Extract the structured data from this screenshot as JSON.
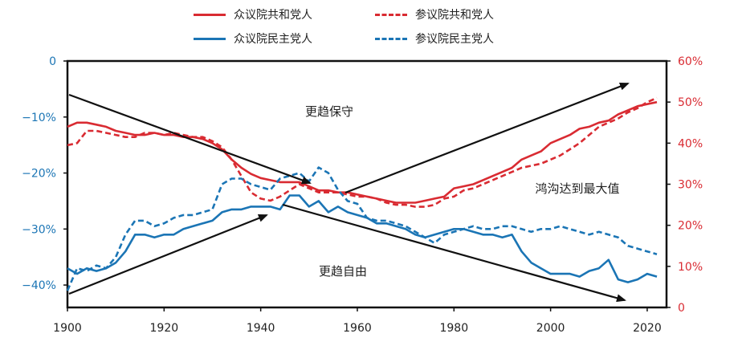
{
  "chart_data": {
    "type": "line",
    "x_ticks": [
      1900,
      1920,
      1940,
      1960,
      1980,
      2000,
      2020
    ],
    "xlim": [
      1900,
      2024
    ],
    "left_axis": {
      "ylim": [
        -44,
        0
      ],
      "ticks": [
        0,
        -10,
        -20,
        -30,
        -40
      ],
      "tick_labels": [
        "0",
        "−10%",
        "−20%",
        "−30%",
        "−40%"
      ],
      "color": "#1b75b5"
    },
    "right_axis": {
      "ylim": [
        0,
        60
      ],
      "ticks": [
        0,
        10,
        20,
        30,
        40,
        50,
        60
      ],
      "tick_labels": [
        "0",
        "10%",
        "20%",
        "30%",
        "40%",
        "50%",
        "60%"
      ],
      "color": "#d92b32"
    },
    "series": [
      {
        "name": "众议院共和党人",
        "axis": "right",
        "color": "#d92b32",
        "dash": "solid",
        "x": [
          1900,
          1902,
          1904,
          1906,
          1908,
          1910,
          1912,
          1914,
          1916,
          1918,
          1920,
          1922,
          1924,
          1926,
          1928,
          1930,
          1932,
          1934,
          1936,
          1938,
          1940,
          1942,
          1944,
          1946,
          1948,
          1950,
          1952,
          1954,
          1956,
          1958,
          1960,
          1962,
          1964,
          1966,
          1968,
          1970,
          1972,
          1974,
          1976,
          1978,
          1980,
          1982,
          1984,
          1986,
          1988,
          1990,
          1992,
          1994,
          1996,
          1998,
          2000,
          2002,
          2004,
          2006,
          2008,
          2010,
          2012,
          2014,
          2016,
          2018,
          2020,
          2022
        ],
        "y": [
          44,
          45,
          45,
          44.5,
          44,
          43,
          42.5,
          42,
          42,
          42.5,
          42,
          42,
          41.5,
          41.5,
          41,
          40,
          38.5,
          36,
          34,
          32.5,
          31.5,
          31,
          30.5,
          30.5,
          30.5,
          29.5,
          28.5,
          28.5,
          28,
          28,
          27.5,
          27,
          26.5,
          26,
          25.5,
          25.5,
          25.5,
          26,
          26.5,
          27,
          29,
          29.5,
          30,
          31,
          32,
          33,
          34,
          36,
          37,
          38,
          40,
          41,
          42,
          43.5,
          44,
          45,
          45.5,
          47,
          48,
          49,
          49.5,
          50
        ]
      },
      {
        "name": "参议院共和党人",
        "axis": "right",
        "color": "#d92b32",
        "dash": "dashed",
        "x": [
          1900,
          1902,
          1904,
          1906,
          1908,
          1910,
          1912,
          1914,
          1916,
          1918,
          1920,
          1922,
          1924,
          1926,
          1928,
          1930,
          1932,
          1934,
          1936,
          1938,
          1940,
          1942,
          1944,
          1946,
          1948,
          1950,
          1952,
          1954,
          1956,
          1958,
          1960,
          1962,
          1964,
          1966,
          1968,
          1970,
          1972,
          1974,
          1976,
          1978,
          1980,
          1982,
          1984,
          1986,
          1988,
          1990,
          1992,
          1994,
          1996,
          1998,
          2000,
          2002,
          2004,
          2006,
          2008,
          2010,
          2012,
          2014,
          2016,
          2018,
          2020,
          2022
        ],
        "y": [
          39.5,
          40,
          43,
          43,
          42.5,
          42,
          41.5,
          41.5,
          42.5,
          42.5,
          42,
          42.5,
          42,
          41.5,
          41.5,
          40.5,
          39,
          36,
          32,
          28,
          26.5,
          26,
          27,
          28.5,
          30,
          29,
          28,
          28,
          28,
          27.5,
          27,
          27,
          26.5,
          25.5,
          25,
          25,
          24.5,
          24.5,
          25,
          26.5,
          27,
          28.5,
          29,
          30,
          31,
          32,
          33,
          34,
          34.5,
          35,
          36,
          37,
          38.5,
          40,
          42,
          44,
          45,
          46,
          47.5,
          48.5,
          50,
          51
        ]
      },
      {
        "name": "众议院民主党人",
        "axis": "left",
        "color": "#1b75b5",
        "dash": "solid",
        "x": [
          1900,
          1902,
          1904,
          1906,
          1908,
          1910,
          1912,
          1914,
          1916,
          1918,
          1920,
          1922,
          1924,
          1926,
          1928,
          1930,
          1932,
          1934,
          1936,
          1938,
          1940,
          1942,
          1944,
          1946,
          1948,
          1950,
          1952,
          1954,
          1956,
          1958,
          1960,
          1962,
          1964,
          1966,
          1968,
          1970,
          1972,
          1974,
          1976,
          1978,
          1980,
          1982,
          1984,
          1986,
          1988,
          1990,
          1992,
          1994,
          1996,
          1998,
          2000,
          2002,
          2004,
          2006,
          2008,
          2010,
          2012,
          2014,
          2016,
          2018,
          2020,
          2022
        ],
        "y": [
          -37,
          -38,
          -37,
          -37.5,
          -37,
          -36,
          -34,
          -31,
          -31,
          -31.5,
          -31,
          -31,
          -30,
          -29.5,
          -29,
          -28.5,
          -27,
          -26.5,
          -26.5,
          -26,
          -26,
          -26,
          -26.5,
          -24,
          -24,
          -26,
          -25,
          -27,
          -26,
          -27,
          -27.5,
          -28,
          -29,
          -29,
          -29.5,
          -30,
          -31,
          -31.5,
          -31,
          -30.5,
          -30,
          -30,
          -30.5,
          -31,
          -31,
          -31.5,
          -31,
          -34,
          -36,
          -37,
          -38,
          -38,
          -38,
          -38.5,
          -37.5,
          -37,
          -35.5,
          -39,
          -39.5,
          -39,
          -38,
          -38.5
        ]
      },
      {
        "name": "参议院民主党人",
        "axis": "left",
        "color": "#1b75b5",
        "dash": "dashed",
        "x": [
          1900,
          1902,
          1904,
          1906,
          1908,
          1910,
          1912,
          1914,
          1916,
          1918,
          1920,
          1922,
          1924,
          1926,
          1928,
          1930,
          1932,
          1934,
          1936,
          1938,
          1940,
          1942,
          1944,
          1946,
          1948,
          1950,
          1952,
          1954,
          1956,
          1958,
          1960,
          1962,
          1964,
          1966,
          1968,
          1970,
          1972,
          1974,
          1976,
          1978,
          1980,
          1982,
          1984,
          1986,
          1988,
          1990,
          1992,
          1994,
          1996,
          1998,
          2000,
          2002,
          2004,
          2006,
          2008,
          2010,
          2012,
          2014,
          2016,
          2018,
          2020,
          2022
        ],
        "y": [
          -41,
          -37,
          -37.5,
          -36.5,
          -37,
          -35,
          -31,
          -28.5,
          -28.5,
          -29.5,
          -29,
          -28,
          -27.5,
          -27.5,
          -27,
          -26.5,
          -22,
          -21,
          -21,
          -22,
          -22.5,
          -23,
          -21,
          -20.5,
          -20,
          -21.5,
          -19,
          -20,
          -23,
          -25,
          -25.5,
          -28,
          -28.5,
          -28.5,
          -29,
          -29.5,
          -30.5,
          -31.5,
          -32.5,
          -31,
          -30.5,
          -30,
          -29.5,
          -30,
          -30,
          -29.5,
          -29.5,
          -30,
          -30.5,
          -30,
          -30,
          -29.5,
          -30,
          -30.5,
          -31,
          -30.5,
          -31,
          -31.5,
          -33,
          -33.5,
          -34,
          -34.5
        ]
      }
    ],
    "annotations": {
      "more_conservative": "更趋保守",
      "more_liberal": "更趋自由",
      "gap_max": "鸿沟达到最大值"
    },
    "legend_position": "top",
    "grid": false
  }
}
